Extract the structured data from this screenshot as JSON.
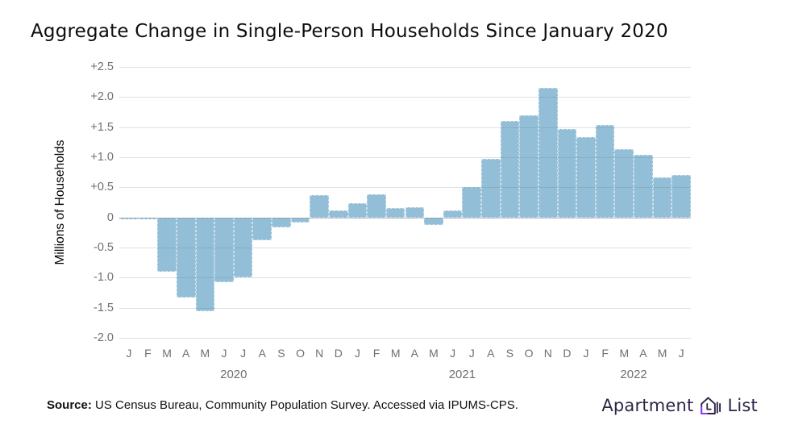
{
  "title": "Aggregate Change in Single-Person Households Since January 2020",
  "chart_data": {
    "type": "bar",
    "title": "Aggregate Change in Single-Person Households Since January 2020",
    "xlabel": "",
    "ylabel": "Millions of Households",
    "ylim": [
      -2.0,
      2.5
    ],
    "grid": true,
    "legend": "none",
    "bar_color": "#92bed7",
    "y_ticks": [
      "+2.5",
      "+2.0",
      "+1.5",
      "+1.0",
      "+0.5",
      "0",
      "-0.5",
      "-1.0",
      "-1.5",
      "-2.0"
    ],
    "y_tick_values": [
      2.5,
      2.0,
      1.5,
      1.0,
      0.5,
      0,
      -0.5,
      -1.0,
      -1.5,
      -2.0
    ],
    "x": [
      "Jan 2020",
      "Feb 2020",
      "Mar 2020",
      "Apr 2020",
      "May 2020",
      "Jun 2020",
      "Jul 2020",
      "Aug 2020",
      "Sep 2020",
      "Oct 2020",
      "Nov 2020",
      "Dec 2020",
      "Jan 2021",
      "Feb 2021",
      "Mar 2021",
      "Apr 2021",
      "May 2021",
      "Jun 2021",
      "Jul 2021",
      "Aug 2021",
      "Sep 2021",
      "Oct 2021",
      "Nov 2021",
      "Dec 2021",
      "Jan 2022",
      "Feb 2022",
      "Mar 2022",
      "Apr 2022",
      "May 2022",
      "Jun 2022"
    ],
    "x_month_letters": [
      "J",
      "F",
      "M",
      "A",
      "M",
      "J",
      "J",
      "A",
      "S",
      "O",
      "N",
      "D",
      "J",
      "F",
      "M",
      "A",
      "M",
      "J",
      "J",
      "A",
      "S",
      "O",
      "N",
      "D",
      "J",
      "F",
      "M",
      "A",
      "M",
      "J"
    ],
    "x_year_groups": [
      {
        "label": "2020",
        "from": 0,
        "to": 11
      },
      {
        "label": "2021",
        "from": 12,
        "to": 23
      },
      {
        "label": "2022",
        "from": 24,
        "to": 29
      }
    ],
    "series": [
      {
        "name": "Aggregate change in single-person households (millions)",
        "values": [
          0,
          -0.02,
          -0.9,
          -1.33,
          -1.56,
          -1.07,
          -1.0,
          -0.38,
          -0.17,
          -0.08,
          0.37,
          0.12,
          0.23,
          0.39,
          0.15,
          0.17,
          -0.12,
          0.11,
          0.5,
          0.97,
          1.6,
          1.7,
          2.15,
          1.47,
          1.34,
          1.53,
          1.13,
          1.04,
          0.67,
          0.71
        ]
      }
    ]
  },
  "footer": {
    "source_label": "Source:",
    "source_text": " US Census Bureau, Community Population Survey. Accessed via IPUMS-CPS."
  },
  "logo": {
    "word1": "Apartment",
    "word2": "List",
    "icon": "house-layers-icon",
    "text_color": "#2e2545",
    "accent_color": "#8b3dff"
  }
}
